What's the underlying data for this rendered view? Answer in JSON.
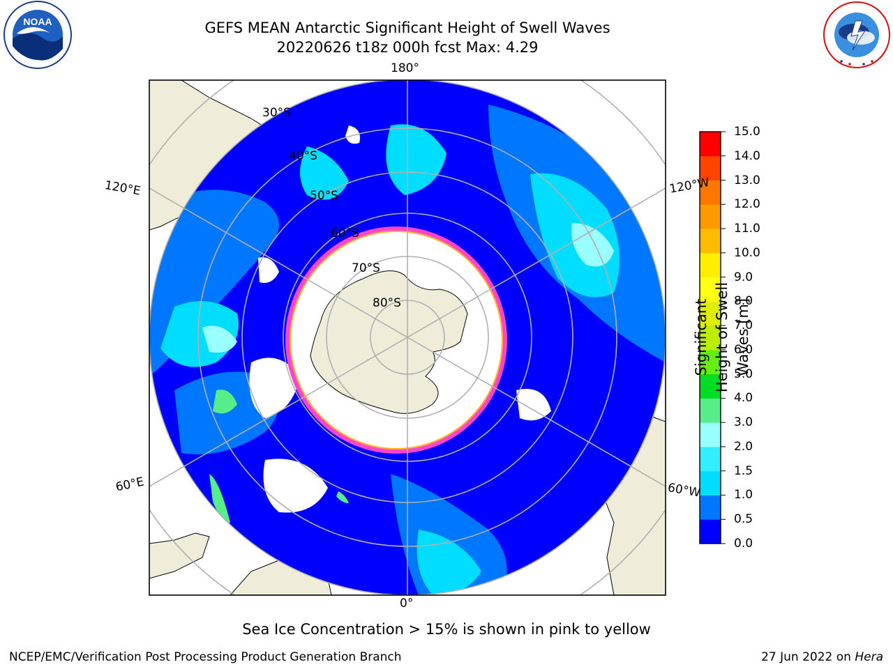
{
  "title": {
    "line1": "GEFS MEAN Antarctic Significant Height of Swell Waves",
    "line2": "20220626 t18z 000h fcst   Max: 4.29"
  },
  "map": {
    "projection": "south-polar-stereographic",
    "longitude_labels": {
      "top": "180°",
      "bottom": "0°",
      "left_upper": "120°E",
      "left_lower": "60°E",
      "right_upper": "120°W",
      "right_lower": "60°W"
    },
    "latitude_labels": [
      "30°S",
      "40°S",
      "50°S",
      "60°S",
      "70°S",
      "80°S"
    ],
    "colors": {
      "land": "#efedd9",
      "no_data": "#ffffff",
      "graticule": "#b0b0b0",
      "coast": "#000000",
      "ice_edge": "#ff44cc",
      "ice_inner": "#ffb020"
    }
  },
  "colorbar": {
    "title": "Significant Height of Swell Waves [m]",
    "ticks": [
      "15.0",
      "14.0",
      "13.0",
      "12.0",
      "11.0",
      "10.0",
      "9.0",
      "8.0",
      "7.0",
      "6.0",
      "5.0",
      "4.0",
      "3.0",
      "2.0",
      "1.5",
      "1.0",
      "0.5",
      "0.0"
    ],
    "bins": [
      {
        "range": "0.0-0.5",
        "color": "#0000ff"
      },
      {
        "range": "0.5-1.0",
        "color": "#0077ff"
      },
      {
        "range": "1.0-1.5",
        "color": "#00ddff"
      },
      {
        "range": "1.5-2.0",
        "color": "#33eeff"
      },
      {
        "range": "2.0-3.0",
        "color": "#99ffff"
      },
      {
        "range": "3.0-4.0",
        "color": "#55ee88"
      },
      {
        "range": "4.0-5.0",
        "color": "#00dd22"
      },
      {
        "range": "5.0-6.0",
        "color": "#66ee11"
      },
      {
        "range": "6.0-7.0",
        "color": "#bbee00"
      },
      {
        "range": "7.0-8.0",
        "color": "#ddee00"
      },
      {
        "range": "8.0-9.0",
        "color": "#ffff11"
      },
      {
        "range": "9.0-10.0",
        "color": "#ffee00"
      },
      {
        "range": "10.0-11.0",
        "color": "#ffbb00"
      },
      {
        "range": "11.0-12.0",
        "color": "#ff9900"
      },
      {
        "range": "12.0-13.0",
        "color": "#ff7700"
      },
      {
        "range": "13.0-14.0",
        "color": "#ff4400"
      },
      {
        "range": "14.0-15.0",
        "color": "#ff0000"
      }
    ]
  },
  "footer": {
    "note": "Sea Ice Concentration > 15% is shown in pink to yellow",
    "left": "NCEP/EMC/Verification Post Processing Product Generation Branch",
    "right_prefix": "27 Jun 2022 on ",
    "right_italic": "Hera"
  },
  "logos": {
    "noaa": "NOAA",
    "nws": "NATIONAL WEATHER SERVICE"
  }
}
